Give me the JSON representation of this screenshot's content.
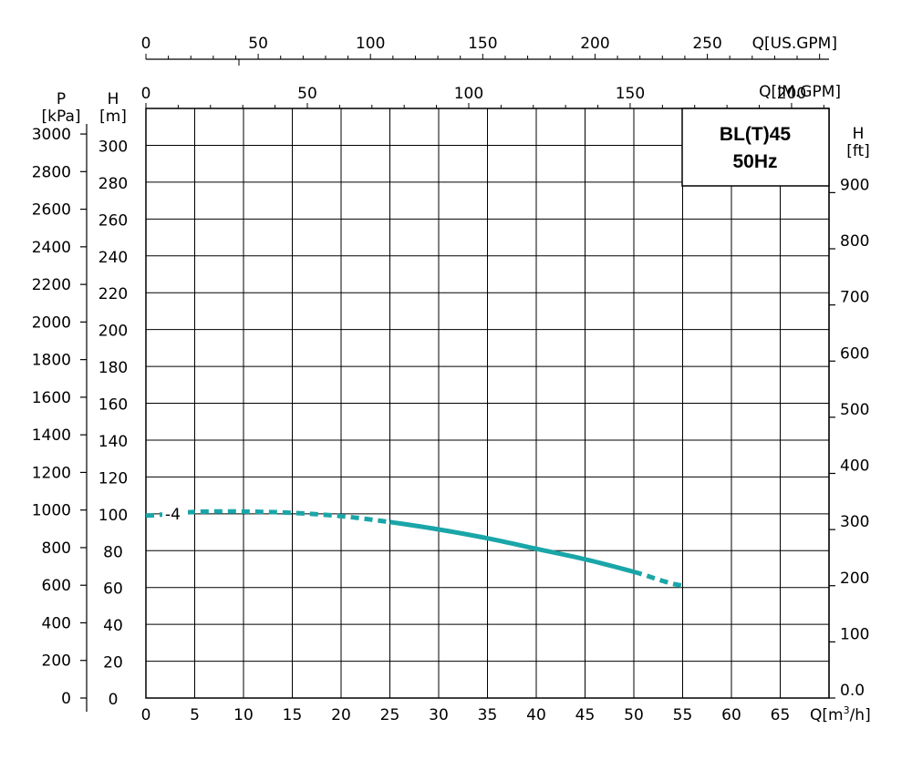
{
  "chart_data": {
    "type": "line",
    "model_box": {
      "line1": "BL(T)45",
      "line2": "50Hz"
    },
    "axes": {
      "x_m3h": {
        "label": "Q[m³/h]",
        "label_main": "Q[m",
        "label_sup": "3",
        "label_tail": "/h]",
        "range": [
          0,
          70
        ],
        "ticks": [
          "0",
          "5",
          "10",
          "15",
          "20",
          "25",
          "30",
          "35",
          "40",
          "45",
          "50",
          "55",
          "60",
          "65"
        ]
      },
      "x_imgpm": {
        "label": "Q[IM.GPM]",
        "range": [
          0,
          211.6
        ],
        "ticks": [
          "0",
          "50",
          "100",
          "150",
          "200"
        ]
      },
      "x_usgpm": {
        "label": "Q[US.GPM]",
        "range": [
          0,
          304.2
        ],
        "ticks": [
          "0",
          "50",
          "100",
          "150",
          "200",
          "250"
        ]
      },
      "y_m": {
        "label_top": "H",
        "label_unit": "[m]",
        "range": [
          0,
          320
        ],
        "ticks": [
          "0",
          "20",
          "40",
          "60",
          "80",
          "100",
          "120",
          "140",
          "160",
          "180",
          "200",
          "220",
          "240",
          "260",
          "280",
          "300"
        ]
      },
      "y_kpa": {
        "label_top": "P",
        "label_unit": "[kPa]",
        "range": [
          0,
          3136
        ],
        "ticks": [
          "0",
          "200",
          "400",
          "600",
          "800",
          "1000",
          "1200",
          "1400",
          "1600",
          "1800",
          "2000",
          "2200",
          "2400",
          "2600",
          "2800",
          "3000"
        ]
      },
      "y_ft": {
        "label_top": "H",
        "label_unit": "[ft]",
        "range": [
          0,
          1049.9
        ],
        "ticks": [
          "0.0",
          "100",
          "200",
          "300",
          "400",
          "500",
          "600",
          "700",
          "800",
          "900"
        ]
      },
      "grid": true
    },
    "series": [
      {
        "name": "-4",
        "color": "#1aa6a8",
        "x": [
          0,
          5,
          10,
          15,
          20,
          25,
          30,
          35,
          40,
          45,
          50,
          55
        ],
        "y": [
          99,
          101,
          101.2,
          100.5,
          98.7,
          95.5,
          91.5,
          86.7,
          81,
          75.3,
          68.5,
          61
        ],
        "dashed_x_ranges": [
          [
            0,
            25
          ],
          [
            50,
            55
          ]
        ]
      }
    ]
  }
}
